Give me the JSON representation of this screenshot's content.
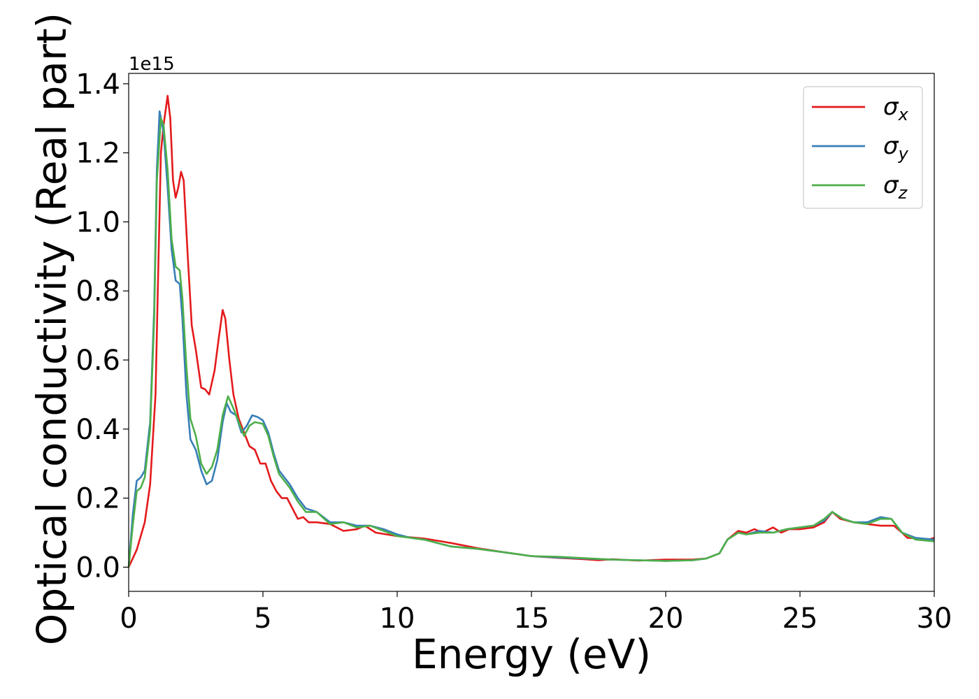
{
  "chart_data": {
    "type": "line",
    "xlabel": "Energy (eV)",
    "ylabel": "Optical conductivity (Real part)",
    "offset_label": "1e15",
    "y_scale_factor": 1000000000000000.0,
    "xlim": [
      0,
      30
    ],
    "ylim": [
      -0.07,
      1.43
    ],
    "x_ticks": [
      0,
      5,
      10,
      15,
      20,
      25,
      30
    ],
    "x_tick_labels": [
      "0",
      "5",
      "10",
      "15",
      "20",
      "25",
      "30"
    ],
    "y_ticks": [
      0.0,
      0.2,
      0.4,
      0.6,
      0.8,
      1.0,
      1.2,
      1.4
    ],
    "y_tick_labels": [
      "0.0",
      "0.2",
      "0.4",
      "0.6",
      "0.8",
      "1.0",
      "1.2",
      "1.4"
    ],
    "grid": false,
    "legend_position": "top-right",
    "series": [
      {
        "name": "σx",
        "legend_base": "σ",
        "legend_sub": "x",
        "color": "#e41a1c",
        "points": [
          [
            0,
            0
          ],
          [
            0.3,
            0.05
          ],
          [
            0.6,
            0.13
          ],
          [
            0.8,
            0.24
          ],
          [
            1.0,
            0.5
          ],
          [
            1.1,
            0.85
          ],
          [
            1.2,
            1.2
          ],
          [
            1.3,
            1.28
          ],
          [
            1.45,
            1.365
          ],
          [
            1.55,
            1.3
          ],
          [
            1.65,
            1.12
          ],
          [
            1.75,
            1.07
          ],
          [
            1.85,
            1.1
          ],
          [
            1.95,
            1.145
          ],
          [
            2.05,
            1.12
          ],
          [
            2.2,
            0.9
          ],
          [
            2.35,
            0.7
          ],
          [
            2.5,
            0.63
          ],
          [
            2.7,
            0.52
          ],
          [
            2.85,
            0.515
          ],
          [
            3.0,
            0.5
          ],
          [
            3.2,
            0.57
          ],
          [
            3.35,
            0.66
          ],
          [
            3.5,
            0.745
          ],
          [
            3.6,
            0.72
          ],
          [
            3.75,
            0.6
          ],
          [
            3.9,
            0.5
          ],
          [
            4.1,
            0.43
          ],
          [
            4.3,
            0.39
          ],
          [
            4.5,
            0.35
          ],
          [
            4.7,
            0.34
          ],
          [
            4.9,
            0.3
          ],
          [
            5.1,
            0.3
          ],
          [
            5.3,
            0.25
          ],
          [
            5.5,
            0.22
          ],
          [
            5.7,
            0.2
          ],
          [
            5.9,
            0.2
          ],
          [
            6.1,
            0.17
          ],
          [
            6.3,
            0.14
          ],
          [
            6.5,
            0.145
          ],
          [
            6.7,
            0.13
          ],
          [
            7.0,
            0.13
          ],
          [
            7.5,
            0.125
          ],
          [
            8.0,
            0.105
          ],
          [
            8.5,
            0.11
          ],
          [
            8.8,
            0.12
          ],
          [
            9.2,
            0.1
          ],
          [
            10.0,
            0.09
          ],
          [
            11.0,
            0.083
          ],
          [
            12.0,
            0.07
          ],
          [
            13.0,
            0.055
          ],
          [
            14.0,
            0.043
          ],
          [
            15.0,
            0.032
          ],
          [
            16.0,
            0.027
          ],
          [
            17.0,
            0.023
          ],
          [
            17.5,
            0.02
          ],
          [
            18.0,
            0.023
          ],
          [
            19.0,
            0.019
          ],
          [
            20.0,
            0.022
          ],
          [
            21.0,
            0.022
          ],
          [
            21.5,
            0.025
          ],
          [
            22.0,
            0.04
          ],
          [
            22.3,
            0.08
          ],
          [
            22.7,
            0.105
          ],
          [
            23.0,
            0.1
          ],
          [
            23.3,
            0.11
          ],
          [
            23.6,
            0.1
          ],
          [
            24.0,
            0.115
          ],
          [
            24.3,
            0.1
          ],
          [
            24.6,
            0.11
          ],
          [
            25.0,
            0.11
          ],
          [
            25.5,
            0.115
          ],
          [
            25.9,
            0.13
          ],
          [
            26.2,
            0.16
          ],
          [
            26.5,
            0.14
          ],
          [
            27.0,
            0.13
          ],
          [
            27.5,
            0.125
          ],
          [
            28.0,
            0.12
          ],
          [
            28.5,
            0.12
          ],
          [
            28.8,
            0.1
          ],
          [
            29.0,
            0.085
          ],
          [
            29.5,
            0.083
          ],
          [
            29.8,
            0.08
          ],
          [
            30.0,
            0.085
          ]
        ]
      },
      {
        "name": "σy",
        "legend_base": "σ",
        "legend_sub": "y",
        "color": "#377eb8",
        "points": [
          [
            0,
            0
          ],
          [
            0.15,
            0.15
          ],
          [
            0.3,
            0.25
          ],
          [
            0.45,
            0.26
          ],
          [
            0.6,
            0.28
          ],
          [
            0.8,
            0.42
          ],
          [
            0.95,
            0.75
          ],
          [
            1.05,
            1.15
          ],
          [
            1.15,
            1.32
          ],
          [
            1.3,
            1.26
          ],
          [
            1.45,
            1.1
          ],
          [
            1.6,
            0.92
          ],
          [
            1.75,
            0.83
          ],
          [
            1.9,
            0.82
          ],
          [
            2.0,
            0.72
          ],
          [
            2.15,
            0.5
          ],
          [
            2.3,
            0.37
          ],
          [
            2.5,
            0.34
          ],
          [
            2.7,
            0.28
          ],
          [
            2.9,
            0.24
          ],
          [
            3.1,
            0.25
          ],
          [
            3.3,
            0.31
          ],
          [
            3.5,
            0.42
          ],
          [
            3.65,
            0.475
          ],
          [
            3.8,
            0.45
          ],
          [
            4.0,
            0.44
          ],
          [
            4.2,
            0.39
          ],
          [
            4.4,
            0.41
          ],
          [
            4.6,
            0.44
          ],
          [
            4.8,
            0.435
          ],
          [
            5.0,
            0.425
          ],
          [
            5.2,
            0.39
          ],
          [
            5.4,
            0.33
          ],
          [
            5.6,
            0.28
          ],
          [
            5.8,
            0.26
          ],
          [
            6.0,
            0.24
          ],
          [
            6.3,
            0.2
          ],
          [
            6.6,
            0.17
          ],
          [
            7.0,
            0.16
          ],
          [
            7.5,
            0.13
          ],
          [
            8.0,
            0.13
          ],
          [
            8.5,
            0.12
          ],
          [
            9.0,
            0.12
          ],
          [
            9.5,
            0.11
          ],
          [
            10.0,
            0.095
          ],
          [
            10.5,
            0.085
          ],
          [
            11.0,
            0.08
          ],
          [
            12.0,
            0.06
          ],
          [
            13.0,
            0.053
          ],
          [
            14.0,
            0.043
          ],
          [
            15.0,
            0.032
          ],
          [
            16.0,
            0.028
          ],
          [
            17.0,
            0.025
          ],
          [
            18.0,
            0.022
          ],
          [
            19.0,
            0.02
          ],
          [
            20.0,
            0.018
          ],
          [
            21.0,
            0.02
          ],
          [
            21.5,
            0.025
          ],
          [
            22.0,
            0.04
          ],
          [
            22.3,
            0.08
          ],
          [
            22.7,
            0.1
          ],
          [
            23.0,
            0.095
          ],
          [
            23.5,
            0.105
          ],
          [
            24.0,
            0.1
          ],
          [
            24.5,
            0.11
          ],
          [
            25.0,
            0.115
          ],
          [
            25.5,
            0.12
          ],
          [
            25.9,
            0.135
          ],
          [
            26.2,
            0.16
          ],
          [
            26.6,
            0.14
          ],
          [
            27.0,
            0.13
          ],
          [
            27.5,
            0.13
          ],
          [
            28.0,
            0.145
          ],
          [
            28.4,
            0.14
          ],
          [
            28.8,
            0.1
          ],
          [
            29.3,
            0.085
          ],
          [
            30.0,
            0.08
          ]
        ]
      },
      {
        "name": "σz",
        "legend_base": "σ",
        "legend_sub": "z",
        "color": "#4daf4a",
        "points": [
          [
            0,
            0
          ],
          [
            0.15,
            0.12
          ],
          [
            0.3,
            0.22
          ],
          [
            0.45,
            0.23
          ],
          [
            0.6,
            0.26
          ],
          [
            0.8,
            0.4
          ],
          [
            0.95,
            0.72
          ],
          [
            1.05,
            1.12
          ],
          [
            1.2,
            1.3
          ],
          [
            1.3,
            1.28
          ],
          [
            1.45,
            1.15
          ],
          [
            1.6,
            0.95
          ],
          [
            1.75,
            0.87
          ],
          [
            1.9,
            0.86
          ],
          [
            2.0,
            0.78
          ],
          [
            2.15,
            0.58
          ],
          [
            2.3,
            0.43
          ],
          [
            2.5,
            0.38
          ],
          [
            2.7,
            0.3
          ],
          [
            2.9,
            0.27
          ],
          [
            3.1,
            0.29
          ],
          [
            3.3,
            0.34
          ],
          [
            3.5,
            0.44
          ],
          [
            3.7,
            0.495
          ],
          [
            3.9,
            0.46
          ],
          [
            4.1,
            0.42
          ],
          [
            4.3,
            0.38
          ],
          [
            4.5,
            0.41
          ],
          [
            4.7,
            0.42
          ],
          [
            5.0,
            0.415
          ],
          [
            5.2,
            0.38
          ],
          [
            5.4,
            0.32
          ],
          [
            5.6,
            0.27
          ],
          [
            5.8,
            0.25
          ],
          [
            6.0,
            0.23
          ],
          [
            6.3,
            0.19
          ],
          [
            6.6,
            0.16
          ],
          [
            7.0,
            0.16
          ],
          [
            7.5,
            0.125
          ],
          [
            8.0,
            0.13
          ],
          [
            8.5,
            0.115
          ],
          [
            9.0,
            0.12
          ],
          [
            9.5,
            0.105
          ],
          [
            10.0,
            0.09
          ],
          [
            10.5,
            0.085
          ],
          [
            11.0,
            0.08
          ],
          [
            12.0,
            0.06
          ],
          [
            13.0,
            0.053
          ],
          [
            14.0,
            0.043
          ],
          [
            15.0,
            0.032
          ],
          [
            16.0,
            0.03
          ],
          [
            17.0,
            0.026
          ],
          [
            18.0,
            0.022
          ],
          [
            19.0,
            0.02
          ],
          [
            20.0,
            0.018
          ],
          [
            21.0,
            0.02
          ],
          [
            21.5,
            0.025
          ],
          [
            22.0,
            0.04
          ],
          [
            22.3,
            0.08
          ],
          [
            22.7,
            0.1
          ],
          [
            23.0,
            0.095
          ],
          [
            23.5,
            0.1
          ],
          [
            24.0,
            0.1
          ],
          [
            24.5,
            0.11
          ],
          [
            25.0,
            0.115
          ],
          [
            25.5,
            0.12
          ],
          [
            25.9,
            0.14
          ],
          [
            26.2,
            0.16
          ],
          [
            26.6,
            0.14
          ],
          [
            27.0,
            0.13
          ],
          [
            27.5,
            0.125
          ],
          [
            28.0,
            0.14
          ],
          [
            28.4,
            0.14
          ],
          [
            28.8,
            0.1
          ],
          [
            29.3,
            0.08
          ],
          [
            30.0,
            0.075
          ]
        ]
      }
    ]
  }
}
